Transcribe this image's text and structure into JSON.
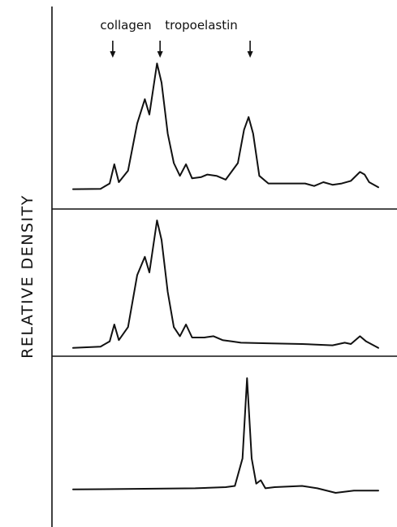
{
  "chart_data": {
    "type": "line",
    "ylabel": "RELATIVE DENSITY",
    "xlabel": "",
    "annotations": [
      {
        "text": "collagen",
        "arrows": [
          0.13,
          0.285
        ]
      },
      {
        "text": "tropoelastin",
        "arrows": [
          0.58
        ]
      }
    ],
    "panels": [
      {
        "series": [
          {
            "values": [
              [
                0,
                0.015
              ],
              [
                0.09,
                0.018
              ],
              [
                0.12,
                0.06
              ],
              [
                0.135,
                0.21
              ],
              [
                0.15,
                0.07
              ],
              [
                0.18,
                0.16
              ],
              [
                0.21,
                0.53
              ],
              [
                0.235,
                0.72
              ],
              [
                0.25,
                0.6
              ],
              [
                0.275,
                1.0
              ],
              [
                0.29,
                0.85
              ],
              [
                0.31,
                0.45
              ],
              [
                0.33,
                0.22
              ],
              [
                0.35,
                0.12
              ],
              [
                0.37,
                0.21
              ],
              [
                0.39,
                0.1
              ],
              [
                0.42,
                0.11
              ],
              [
                0.44,
                0.13
              ],
              [
                0.47,
                0.12
              ],
              [
                0.5,
                0.09
              ],
              [
                0.54,
                0.22
              ],
              [
                0.56,
                0.48
              ],
              [
                0.575,
                0.58
              ],
              [
                0.59,
                0.45
              ],
              [
                0.61,
                0.12
              ],
              [
                0.64,
                0.06
              ],
              [
                0.7,
                0.06
              ],
              [
                0.76,
                0.06
              ],
              [
                0.79,
                0.04
              ],
              [
                0.82,
                0.07
              ],
              [
                0.85,
                0.05
              ],
              [
                0.88,
                0.06
              ],
              [
                0.91,
                0.08
              ],
              [
                0.94,
                0.15
              ],
              [
                0.955,
                0.13
              ],
              [
                0.97,
                0.07
              ],
              [
                1.0,
                0.03
              ]
            ]
          }
        ]
      },
      {
        "series": [
          {
            "values": [
              [
                0,
                0.02
              ],
              [
                0.09,
                0.03
              ],
              [
                0.12,
                0.07
              ],
              [
                0.135,
                0.2
              ],
              [
                0.15,
                0.08
              ],
              [
                0.18,
                0.18
              ],
              [
                0.21,
                0.58
              ],
              [
                0.235,
                0.72
              ],
              [
                0.25,
                0.6
              ],
              [
                0.275,
                1.0
              ],
              [
                0.29,
                0.85
              ],
              [
                0.31,
                0.45
              ],
              [
                0.33,
                0.18
              ],
              [
                0.35,
                0.11
              ],
              [
                0.37,
                0.2
              ],
              [
                0.39,
                0.1
              ],
              [
                0.43,
                0.1
              ],
              [
                0.46,
                0.11
              ],
              [
                0.49,
                0.08
              ],
              [
                0.52,
                0.07
              ],
              [
                0.55,
                0.06
              ],
              [
                0.65,
                0.055
              ],
              [
                0.75,
                0.05
              ],
              [
                0.85,
                0.04
              ],
              [
                0.89,
                0.06
              ],
              [
                0.91,
                0.05
              ],
              [
                0.94,
                0.11
              ],
              [
                0.96,
                0.07
              ],
              [
                1.0,
                0.02
              ]
            ]
          }
        ]
      },
      {
        "series": [
          {
            "values": [
              [
                0,
                0.03
              ],
              [
                0.2,
                0.035
              ],
              [
                0.4,
                0.04
              ],
              [
                0.5,
                0.05
              ],
              [
                0.53,
                0.06
              ],
              [
                0.555,
                0.3
              ],
              [
                0.57,
                1.0
              ],
              [
                0.585,
                0.3
              ],
              [
                0.6,
                0.08
              ],
              [
                0.615,
                0.11
              ],
              [
                0.63,
                0.04
              ],
              [
                0.66,
                0.05
              ],
              [
                0.75,
                0.06
              ],
              [
                0.8,
                0.04
              ],
              [
                0.86,
                0.0
              ],
              [
                0.92,
                0.02
              ],
              [
                1.0,
                0.02
              ]
            ]
          }
        ]
      }
    ],
    "xlim": [
      0,
      1
    ]
  }
}
